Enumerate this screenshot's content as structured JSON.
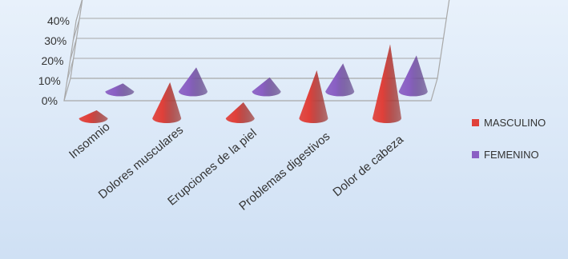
{
  "chart_data": {
    "type": "bar",
    "subtype": "3d-cone",
    "title": "",
    "xlabel": "",
    "ylabel": "",
    "ylim": [
      0,
      40
    ],
    "y_ticks": [
      "0%",
      "10%",
      "20%",
      "30%",
      "40%"
    ],
    "grid": true,
    "legend_position": "right",
    "categories": [
      "Insomnio",
      "Dolores musculares",
      "Erupciones de la piel",
      "Problemas digestivos",
      "Dolor de cabeza"
    ],
    "series": [
      {
        "name": "MASCULINO",
        "color": "#e0403a",
        "values": [
          4,
          18,
          8,
          24,
          37
        ]
      },
      {
        "name": "FEMENINO",
        "color": "#8a5fc4",
        "values": [
          4,
          12,
          7,
          14,
          18
        ]
      }
    ],
    "colors": {
      "background": "#d9e8f7",
      "axis": "#aaaaaa"
    }
  }
}
